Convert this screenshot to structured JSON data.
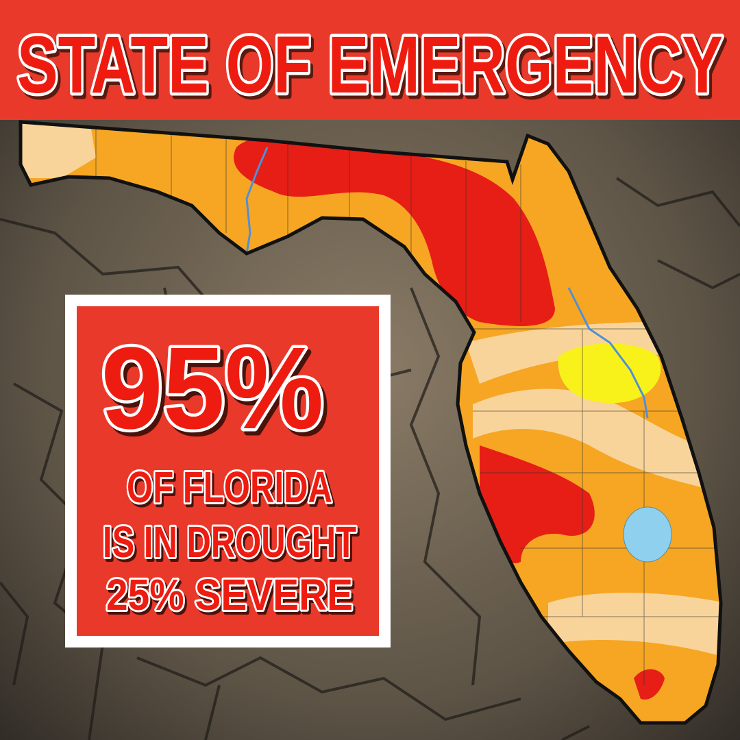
{
  "header": {
    "title": "STATE OF EMERGENCY"
  },
  "callout": {
    "headline": "95%",
    "lines": [
      "OF FLORIDA",
      "IS IN DROUGHT",
      "25% SEVERE"
    ]
  }
}
